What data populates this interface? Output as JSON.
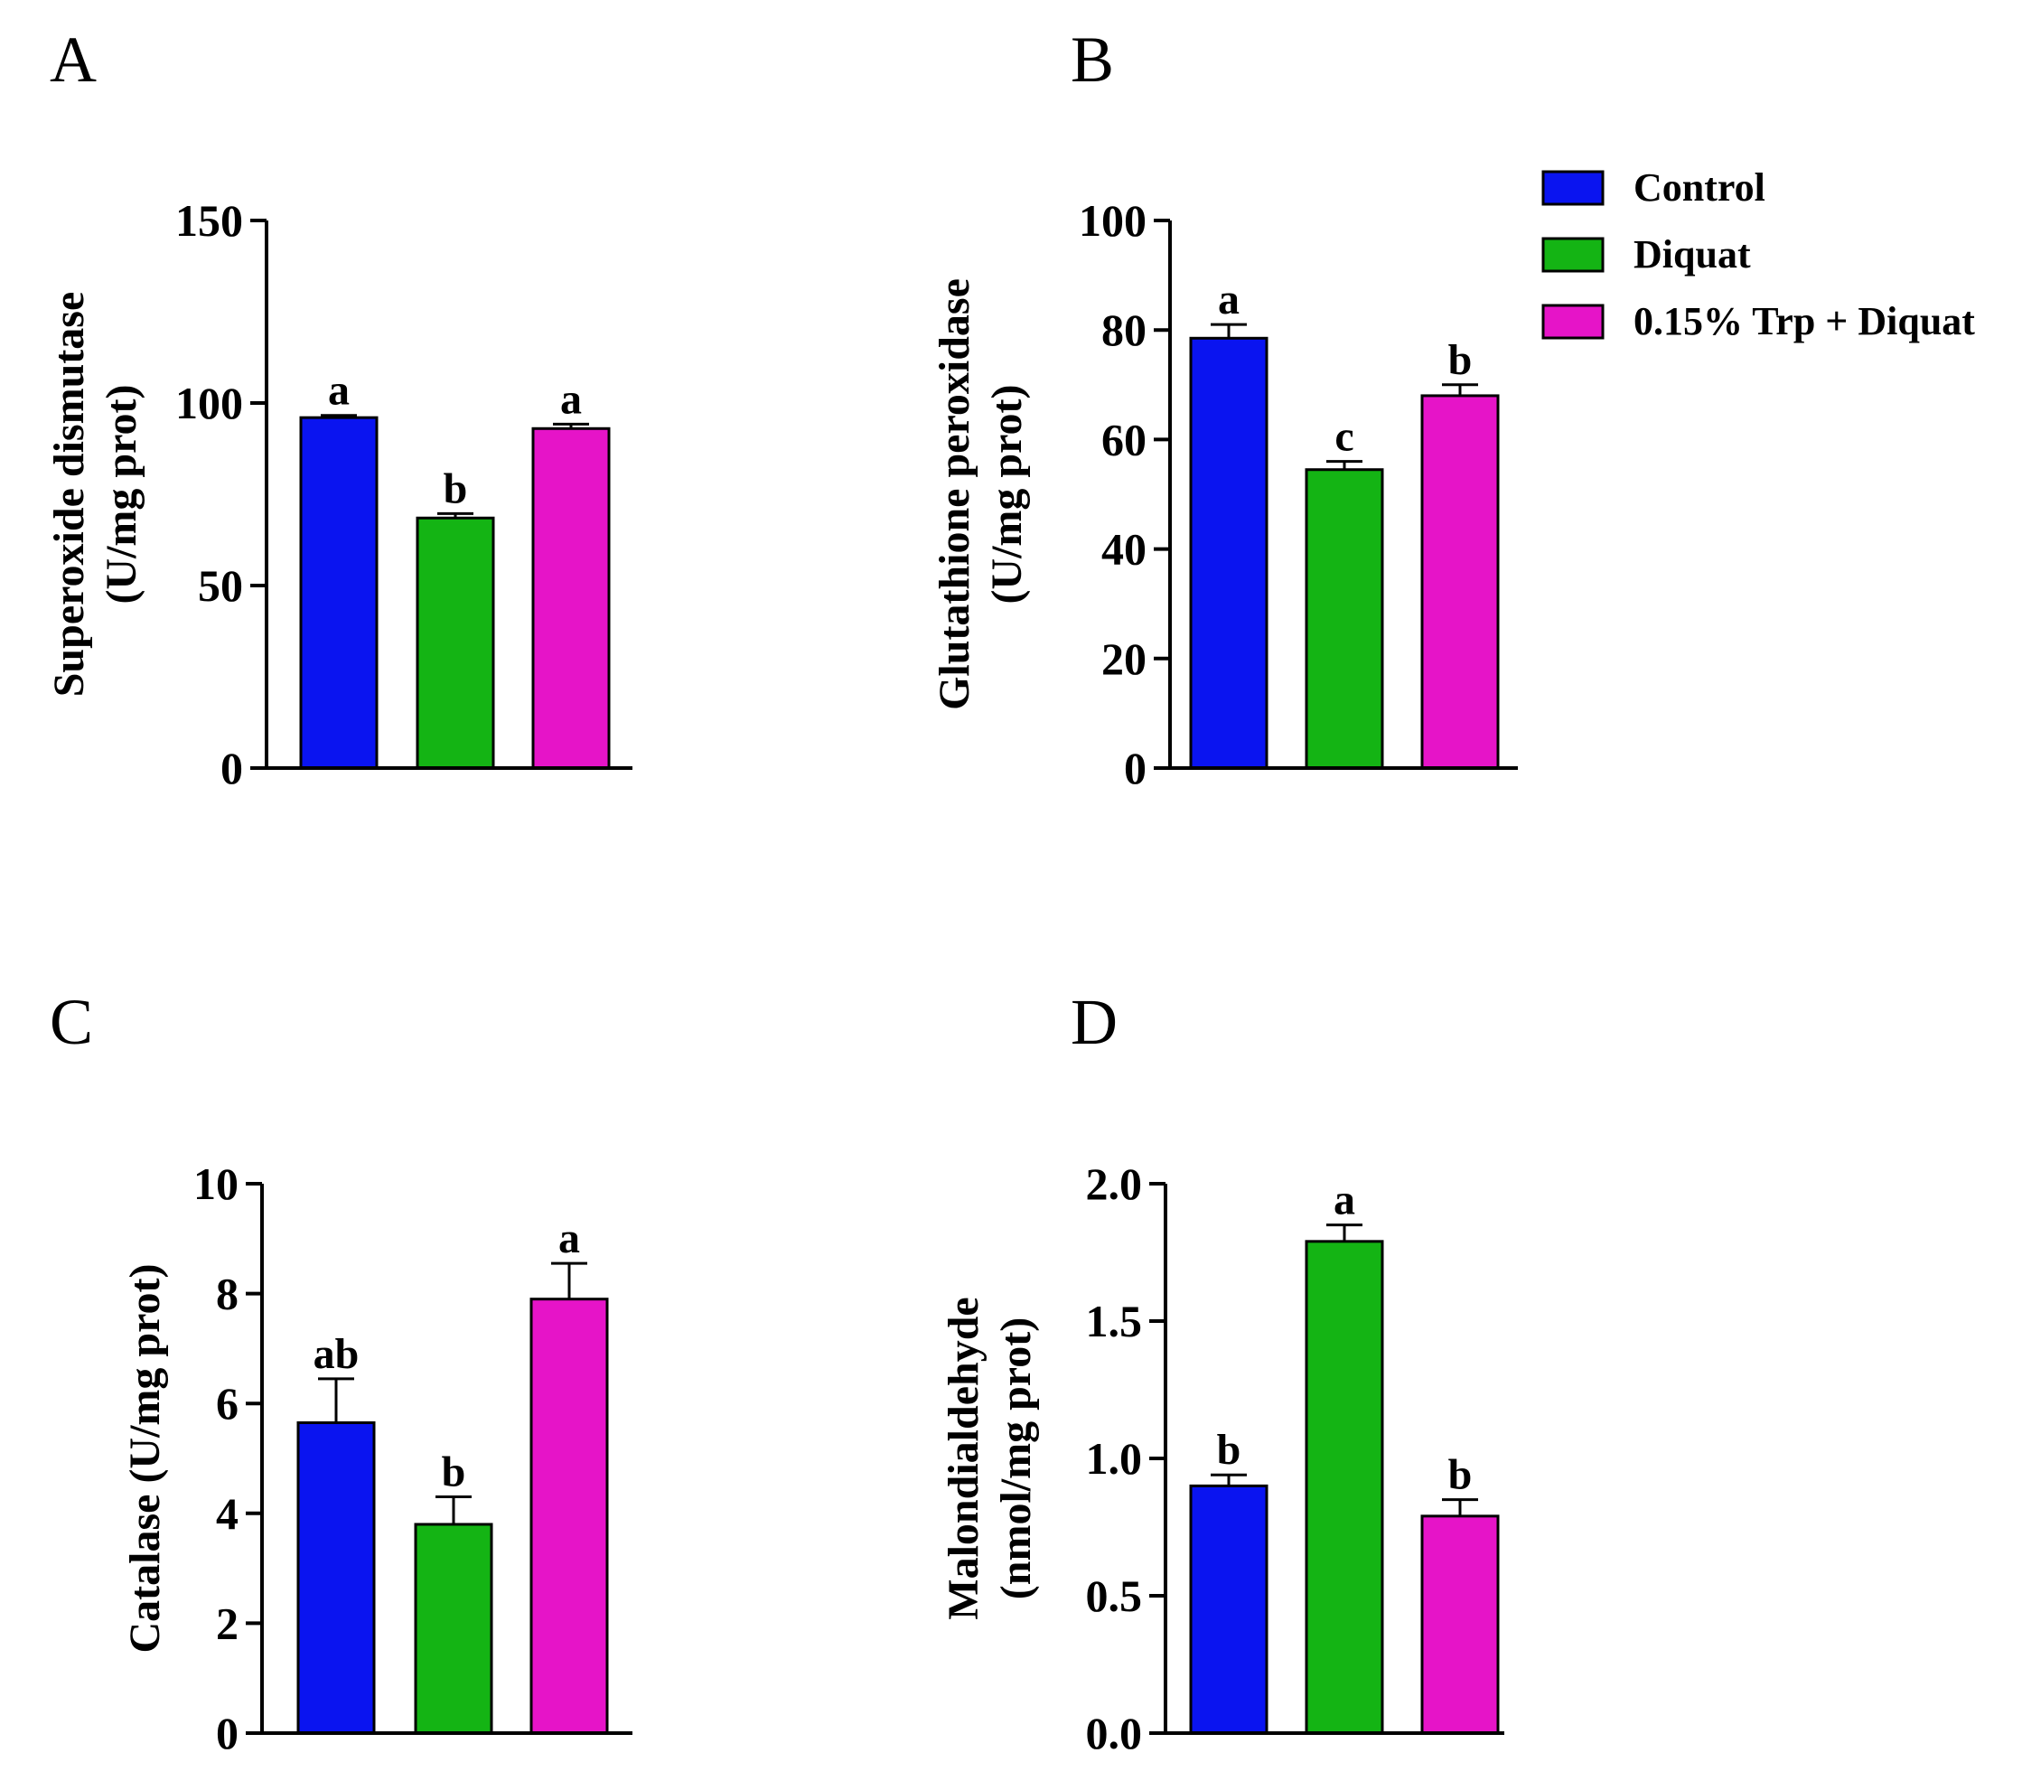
{
  "colors": {
    "Control": "#0a14f0",
    "Diquat": "#14b414",
    "0.15% Trp + Diquat": "#e614c8"
  },
  "legend": {
    "placement": "top-right",
    "entries": [
      {
        "name": "Control",
        "color": "#0a14f0"
      },
      {
        "name": "Diquat",
        "color": "#14b414"
      },
      {
        "name": "0.15% Trp + Diquat",
        "color": "#e614c8"
      }
    ]
  },
  "chart_data": [
    {
      "panel": "A",
      "type": "bar",
      "categories": [
        "Control",
        "Diquat",
        "0.15% Trp + Diquat"
      ],
      "values": [
        96,
        68.5,
        93
      ],
      "errors": [
        0.6,
        1.2,
        1.2
      ],
      "sig_labels": [
        "a",
        "b",
        "a"
      ],
      "ylabel_lines": [
        "Superoxide dismutase",
        "(U/mg prot)"
      ],
      "ylim": [
        0,
        150
      ],
      "yticks": [
        0,
        50,
        100,
        150
      ],
      "ytick_labels": [
        "0",
        "50",
        "100",
        "150"
      ],
      "grid": false
    },
    {
      "panel": "B",
      "type": "bar",
      "categories": [
        "Control",
        "Diquat",
        "0.15% Trp + Diquat"
      ],
      "values": [
        78.5,
        54.5,
        68
      ],
      "errors": [
        2.5,
        1.5,
        2
      ],
      "sig_labels": [
        "a",
        "c",
        "b"
      ],
      "ylabel_lines": [
        "Glutathione peroxidase",
        "(U/mg prot)"
      ],
      "ylim": [
        0,
        100
      ],
      "yticks": [
        0,
        20,
        40,
        60,
        80,
        100
      ],
      "ytick_labels": [
        "0",
        "20",
        "40",
        "60",
        "80",
        "100"
      ],
      "grid": false
    },
    {
      "panel": "C",
      "type": "bar",
      "categories": [
        "Control",
        "Diquat",
        "0.15% Trp + Diquat"
      ],
      "values": [
        5.65,
        3.8,
        7.9
      ],
      "errors": [
        0.8,
        0.5,
        0.65
      ],
      "sig_labels": [
        "ab",
        "b",
        "a"
      ],
      "ylabel_lines": [
        "Catalase (U/mg prot)"
      ],
      "ylim": [
        0,
        10
      ],
      "yticks": [
        0,
        2,
        4,
        6,
        8,
        10
      ],
      "ytick_labels": [
        "0",
        "2",
        "4",
        "6",
        "8",
        "10"
      ],
      "grid": false
    },
    {
      "panel": "D",
      "type": "bar",
      "categories": [
        "Control",
        "Diquat",
        "0.15% Trp + Diquat"
      ],
      "values": [
        0.9,
        1.79,
        0.79
      ],
      "errors": [
        0.04,
        0.06,
        0.06
      ],
      "sig_labels": [
        "b",
        "a",
        "b"
      ],
      "ylabel_lines": [
        "Malondialdehyde",
        "(nmol/mg prot)"
      ],
      "ylim": [
        0,
        2
      ],
      "yticks": [
        0,
        0.5,
        1,
        1.5,
        2
      ],
      "ytick_labels": [
        "0.0",
        "0.5",
        "1.0",
        "1.5",
        "2.0"
      ],
      "grid": false
    }
  ]
}
